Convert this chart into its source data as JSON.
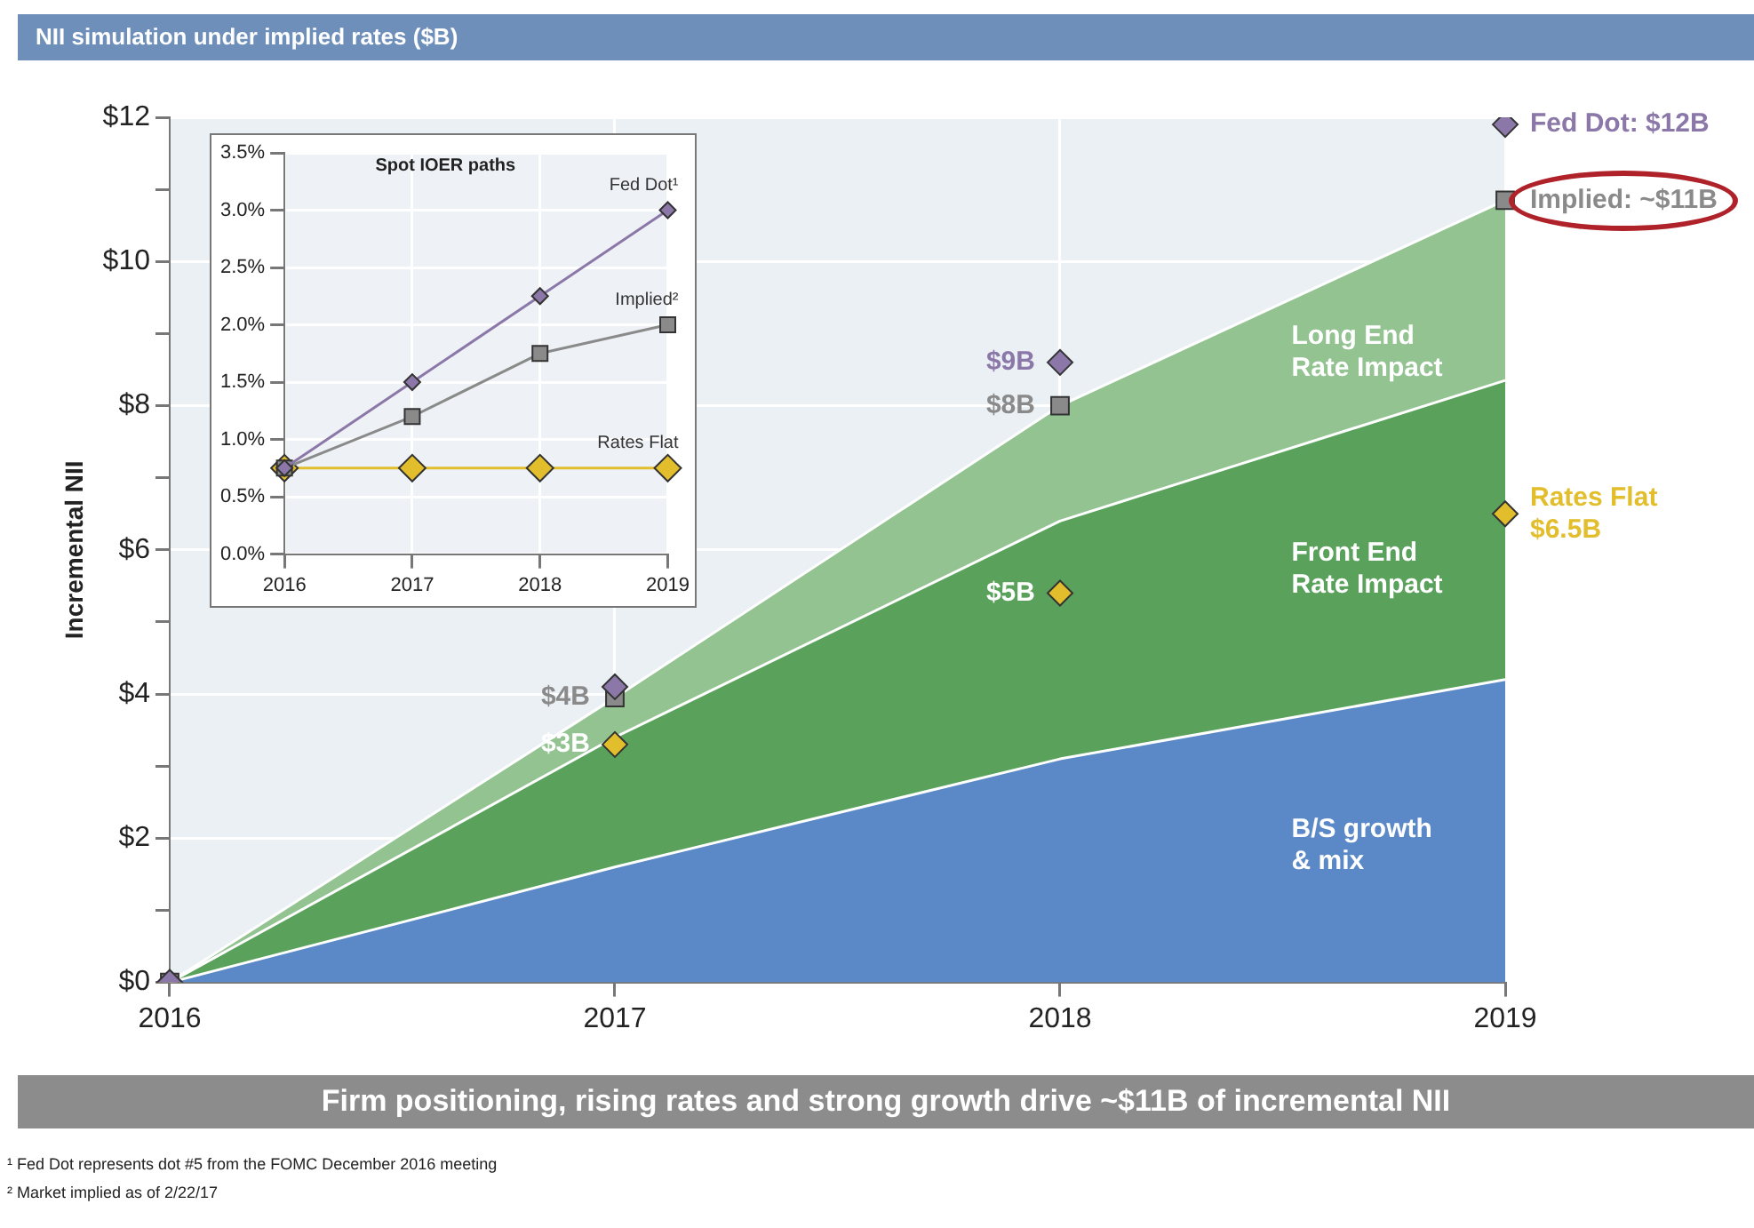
{
  "chart_data": [
    {
      "type": "area",
      "title": "NII simulation under implied rates ($B)",
      "ylabel": "Incremental NII",
      "stacked": true,
      "grid": true,
      "legend": false,
      "categories": [
        "2016",
        "2017",
        "2018",
        "2019"
      ],
      "ylim": [
        0,
        12
      ],
      "yticks": [
        {
          "value": 0,
          "label": "$0"
        },
        {
          "value": 1,
          "label": null
        },
        {
          "value": 2,
          "label": "$2"
        },
        {
          "value": 3,
          "label": null
        },
        {
          "value": 4,
          "label": "$4"
        },
        {
          "value": 5,
          "label": null
        },
        {
          "value": 6,
          "label": "$6"
        },
        {
          "value": 7,
          "label": null
        },
        {
          "value": 8,
          "label": "$8"
        },
        {
          "value": 9,
          "label": null
        },
        {
          "value": 10,
          "label": "$10"
        },
        {
          "value": 11,
          "label": null
        },
        {
          "value": 12,
          "label": "$12"
        }
      ],
      "series": [
        {
          "name": "B/S growth & mix",
          "color": "#5b88c6",
          "values": [
            0,
            1.6,
            3.1,
            4.2
          ]
        },
        {
          "name": "Front End Rate Impact",
          "color": "#5aa25c",
          "values": [
            0,
            1.8,
            3.3,
            4.15
          ]
        },
        {
          "name": "Long End Rate Impact",
          "color": "#92c391",
          "values": [
            0,
            0.55,
            1.6,
            2.5
          ]
        },
        {
          "type": "scatter",
          "marker": "diamond",
          "color": "#8b78a8",
          "values": [
            0,
            4.1,
            8.6,
            11.9
          ],
          "value_labels": [
            null,
            null,
            "$9B",
            "Fed Dot: $12B"
          ]
        },
        {
          "type": "scatter",
          "marker": "square",
          "color": "#8a8a8a",
          "values": [
            0,
            3.95,
            8.0,
            10.85
          ],
          "value_labels": [
            null,
            "$4B",
            "$8B",
            "Implied: ~$11B"
          ]
        },
        {
          "type": "scatter",
          "marker": "diamond",
          "color": "#e2be2c",
          "values": [
            0,
            3.3,
            5.4,
            6.5
          ],
          "value_labels": [
            null,
            "$3B",
            "$5B",
            "Rates Flat\n$6.5B"
          ]
        }
      ],
      "annotations": [
        "Firm positioning, rising rates and strong growth drive ~$11B of incremental NII",
        "¹ Fed Dot represents dot #5 from the FOMC December 2016 meeting",
        "² Market implied as of 2/22/17"
      ]
    },
    {
      "type": "line",
      "title": "Spot IOER paths",
      "grid": true,
      "legend": false,
      "marker": "diamond",
      "categories": [
        "2016",
        "2017",
        "2018",
        "2019"
      ],
      "ylim": [
        0,
        3.5
      ],
      "yticks": [
        {
          "value": 0,
          "label": "0.0%"
        },
        {
          "value": 0.5,
          "label": "0.5%"
        },
        {
          "value": 1,
          "label": "1.0%"
        },
        {
          "value": 1.5,
          "label": "1.5%"
        },
        {
          "value": 2,
          "label": "2.0%"
        },
        {
          "value": 2.5,
          "label": "2.5%"
        },
        {
          "value": 3,
          "label": "3.0%"
        },
        {
          "value": 3.5,
          "label": "3.5%"
        }
      ],
      "series": [
        {
          "name": "Fed Dot¹",
          "color": "#8b78a8",
          "values": [
            0.75,
            1.5,
            2.25,
            3.0
          ]
        },
        {
          "name": "Implied²",
          "color": "#8a8a8a",
          "marker": "square",
          "values": [
            0.75,
            1.2,
            1.75,
            2.0
          ]
        },
        {
          "name": "Rates Flat",
          "color": "#e2be2c",
          "values": [
            0.75,
            0.75,
            0.75,
            0.75
          ]
        }
      ]
    }
  ]
}
